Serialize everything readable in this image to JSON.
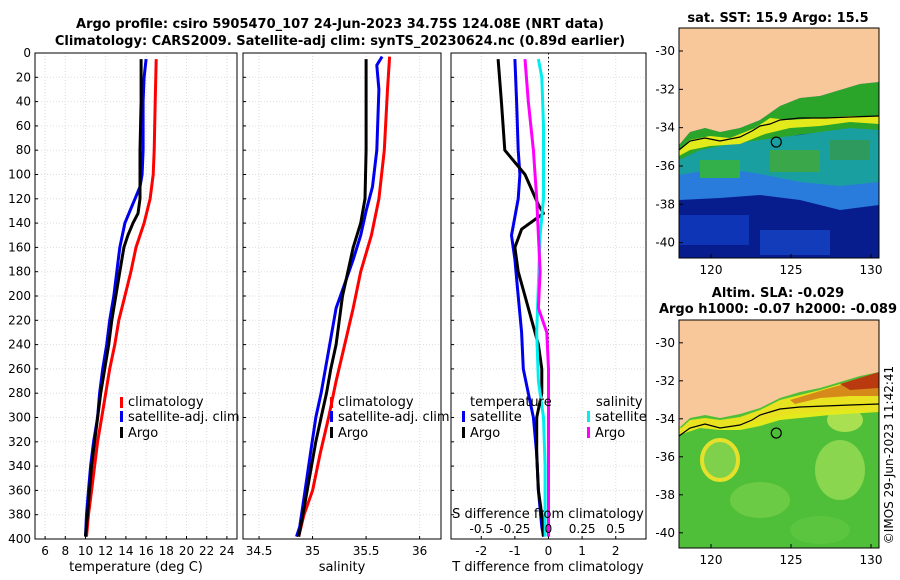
{
  "header": {
    "title_line1": "Argo profile: csiro 5905470_107 24-Jun-2023 34.75S 124.08E (NRT data)",
    "title_line2": "Climatology: CARS2009. Satellite-adj clim: synTS_20230624.nc (0.89d earlier)"
  },
  "watermark": "©IMOS 29-Jun-2023 11:42:41",
  "colors": {
    "climatology": "#ff0000",
    "satellite": "#0000ee",
    "argo": "#000000",
    "satellite_s": "#00eeee",
    "argo_s": "#ff00ff",
    "land": "#f9c89a"
  },
  "chart_data": [
    {
      "id": "temperature",
      "type": "line",
      "xlabel": "temperature (deg C)",
      "xlim": [
        5,
        25
      ],
      "ylim": [
        0,
        400
      ],
      "xticks": [
        6,
        8,
        10,
        12,
        14,
        16,
        18,
        20,
        22,
        24
      ],
      "yticks": [
        0,
        20,
        40,
        60,
        80,
        100,
        120,
        140,
        160,
        180,
        200,
        220,
        240,
        260,
        280,
        300,
        320,
        340,
        360,
        380,
        400
      ],
      "legend": [
        "climatology",
        "satellite-adj. clim",
        "Argo"
      ],
      "series": [
        {
          "name": "climatology",
          "color": "#ff0000",
          "points": [
            [
              17.0,
              5
            ],
            [
              16.9,
              40
            ],
            [
              16.8,
              80
            ],
            [
              16.7,
              100
            ],
            [
              16.4,
              120
            ],
            [
              15.8,
              140
            ],
            [
              15.0,
              160
            ],
            [
              14.5,
              180
            ],
            [
              13.9,
              200
            ],
            [
              13.3,
              220
            ],
            [
              12.9,
              240
            ],
            [
              12.4,
              260
            ],
            [
              12.0,
              280
            ],
            [
              11.6,
              300
            ],
            [
              11.2,
              320
            ],
            [
              10.9,
              340
            ],
            [
              10.6,
              360
            ],
            [
              10.3,
              380
            ],
            [
              10.1,
              398
            ]
          ]
        },
        {
          "name": "satellite-adj. clim",
          "color": "#0000ee",
          "points": [
            [
              16.0,
              5
            ],
            [
              15.8,
              20
            ],
            [
              15.7,
              40
            ],
            [
              15.7,
              80
            ],
            [
              15.6,
              100
            ],
            [
              15.4,
              110
            ],
            [
              14.9,
              120
            ],
            [
              14.4,
              130
            ],
            [
              13.9,
              140
            ],
            [
              13.4,
              160
            ],
            [
              13.1,
              180
            ],
            [
              12.8,
              200
            ],
            [
              12.4,
              220
            ],
            [
              12.1,
              240
            ],
            [
              11.7,
              260
            ],
            [
              11.4,
              280
            ],
            [
              11.2,
              300
            ],
            [
              10.8,
              320
            ],
            [
              10.5,
              340
            ],
            [
              10.3,
              360
            ],
            [
              10.1,
              380
            ],
            [
              10.0,
              398
            ]
          ]
        },
        {
          "name": "Argo",
          "color": "#000000",
          "points": [
            [
              15.5,
              5
            ],
            [
              15.5,
              40
            ],
            [
              15.4,
              80
            ],
            [
              15.4,
              120
            ],
            [
              15.2,
              132
            ],
            [
              14.7,
              140
            ],
            [
              14.2,
              150
            ],
            [
              13.8,
              160
            ],
            [
              13.4,
              180
            ],
            [
              13.0,
              200
            ],
            [
              12.6,
              220
            ],
            [
              12.3,
              240
            ],
            [
              11.9,
              260
            ],
            [
              11.5,
              280
            ],
            [
              11.2,
              300
            ],
            [
              10.9,
              320
            ],
            [
              10.6,
              340
            ],
            [
              10.4,
              360
            ],
            [
              10.2,
              380
            ],
            [
              10.0,
              398
            ]
          ]
        }
      ]
    },
    {
      "id": "salinity",
      "type": "line",
      "xlabel": "salinity",
      "xlim": [
        34.35,
        36.2
      ],
      "ylim": [
        0,
        400
      ],
      "xticks": [
        34.5,
        35,
        35.5,
        36
      ],
      "legend": [
        "climatology",
        "satellite-adj. clim",
        "Argo"
      ],
      "series": [
        {
          "name": "climatology",
          "color": "#ff0000",
          "points": [
            [
              35.72,
              3
            ],
            [
              35.7,
              30
            ],
            [
              35.67,
              80
            ],
            [
              35.62,
              120
            ],
            [
              35.55,
              150
            ],
            [
              35.45,
              180
            ],
            [
              35.38,
              210
            ],
            [
              35.3,
              240
            ],
            [
              35.22,
              270
            ],
            [
              35.15,
              300
            ],
            [
              35.07,
              330
            ],
            [
              35.0,
              360
            ],
            [
              34.92,
              380
            ],
            [
              34.87,
              398
            ]
          ]
        },
        {
          "name": "satellite-adj. clim",
          "color": "#0000ee",
          "points": [
            [
              35.65,
              3
            ],
            [
              35.6,
              10
            ],
            [
              35.62,
              30
            ],
            [
              35.6,
              80
            ],
            [
              35.56,
              110
            ],
            [
              35.5,
              130
            ],
            [
              35.45,
              150
            ],
            [
              35.38,
              170
            ],
            [
              35.3,
              190
            ],
            [
              35.22,
              210
            ],
            [
              35.16,
              240
            ],
            [
              35.12,
              260
            ],
            [
              35.08,
              280
            ],
            [
              35.03,
              300
            ],
            [
              34.98,
              330
            ],
            [
              34.93,
              360
            ],
            [
              34.88,
              390
            ],
            [
              34.85,
              398
            ]
          ]
        },
        {
          "name": "Argo",
          "color": "#000000",
          "points": [
            [
              35.5,
              5
            ],
            [
              35.5,
              40
            ],
            [
              35.5,
              80
            ],
            [
              35.49,
              120
            ],
            [
              35.45,
              140
            ],
            [
              35.38,
              160
            ],
            [
              35.33,
              180
            ],
            [
              35.28,
              200
            ],
            [
              35.25,
              220
            ],
            [
              35.22,
              240
            ],
            [
              35.17,
              260
            ],
            [
              35.13,
              280
            ],
            [
              35.08,
              300
            ],
            [
              35.03,
              320
            ],
            [
              34.99,
              340
            ],
            [
              34.95,
              360
            ],
            [
              34.91,
              380
            ],
            [
              34.87,
              398
            ]
          ]
        }
      ]
    },
    {
      "id": "differences",
      "type": "line",
      "xlabel": "T difference from climatology",
      "xlabel_top": "S difference from climatology",
      "xlim": [
        -2.9,
        2.9
      ],
      "ylim": [
        0,
        400
      ],
      "xticks": [
        -2,
        -1,
        0,
        1,
        2
      ],
      "xticks_s": [
        -0.5,
        -0.25,
        0,
        0.25,
        0.5
      ],
      "xticks_s_labels": [
        "-0.5",
        "-0.25",
        "0",
        "0.25",
        "0.5"
      ],
      "legend_temp_title": "temperature",
      "legend_sal_title": "salinity",
      "legend_entries": [
        "satellite",
        "Argo",
        "satellite",
        "Argo"
      ],
      "series": [
        {
          "name": "temperature satellite",
          "color": "#0000ee",
          "points": [
            [
              -1.0,
              5
            ],
            [
              -0.95,
              40
            ],
            [
              -0.9,
              80
            ],
            [
              -0.85,
              100
            ],
            [
              -0.9,
              120
            ],
            [
              -1.1,
              150
            ],
            [
              -1.0,
              170
            ],
            [
              -0.9,
              200
            ],
            [
              -0.8,
              230
            ],
            [
              -0.75,
              260
            ],
            [
              -0.6,
              280
            ],
            [
              -0.45,
              300
            ],
            [
              -0.35,
              330
            ],
            [
              -0.3,
              360
            ],
            [
              -0.2,
              390
            ],
            [
              -0.15,
              398
            ]
          ]
        },
        {
          "name": "temperature Argo",
          "color": "#000000",
          "points": [
            [
              -1.5,
              5
            ],
            [
              -1.4,
              40
            ],
            [
              -1.3,
              80
            ],
            [
              -0.7,
              100
            ],
            [
              -0.3,
              125
            ],
            [
              -0.15,
              132
            ],
            [
              -0.8,
              145
            ],
            [
              -1.0,
              160
            ],
            [
              -0.9,
              180
            ],
            [
              -0.7,
              200
            ],
            [
              -0.5,
              220
            ],
            [
              -0.3,
              240
            ],
            [
              -0.2,
              260
            ],
            [
              -0.2,
              280
            ],
            [
              -0.35,
              300
            ],
            [
              -0.35,
              330
            ],
            [
              -0.3,
              360
            ],
            [
              -0.2,
              380
            ],
            [
              -0.15,
              398
            ]
          ]
        },
        {
          "name": "salinity satellite",
          "color": "#00eeee",
          "points": [
            [
              -0.3,
              5
            ],
            [
              -0.2,
              20
            ],
            [
              -0.15,
              60
            ],
            [
              -0.15,
              120
            ],
            [
              -0.25,
              150
            ],
            [
              -0.3,
              190
            ],
            [
              -0.35,
              230
            ],
            [
              -0.3,
              270
            ],
            [
              -0.15,
              300
            ],
            [
              -0.1,
              340
            ],
            [
              -0.1,
              398
            ]
          ]
        },
        {
          "name": "salinity Argo",
          "color": "#ff00ff",
          "points": [
            [
              -0.7,
              5
            ],
            [
              -0.6,
              40
            ],
            [
              -0.45,
              80
            ],
            [
              -0.35,
              120
            ],
            [
              -0.3,
              150
            ],
            [
              -0.25,
              180
            ],
            [
              -0.3,
              210
            ],
            [
              -0.05,
              230
            ],
            [
              0.0,
              260
            ],
            [
              0.0,
              300
            ],
            [
              0.0,
              398
            ]
          ]
        }
      ]
    },
    {
      "id": "sst_map",
      "type": "heatmap",
      "title": "sat. SST: 15.9 Argo: 15.5",
      "xticks": [
        120,
        125,
        130
      ],
      "yticks": [
        -30,
        -32,
        -34,
        -36,
        -38,
        -40
      ],
      "xlim": [
        118,
        130.5
      ],
      "ylim": [
        -40.8,
        -28.8
      ],
      "marker": {
        "lon": 124.08,
        "lat": -34.75
      }
    },
    {
      "id": "sla_map",
      "type": "heatmap",
      "title_line1": "Altim. SLA: -0.029",
      "title_line2": "Argo h1000: -0.07 h2000: -0.089",
      "xticks": [
        120,
        125,
        130
      ],
      "yticks": [
        -30,
        -32,
        -34,
        -36,
        -38,
        -40
      ],
      "xlim": [
        118,
        130.5
      ],
      "ylim": [
        -40.8,
        -28.8
      ],
      "marker": {
        "lon": 124.08,
        "lat": -34.75
      }
    }
  ]
}
